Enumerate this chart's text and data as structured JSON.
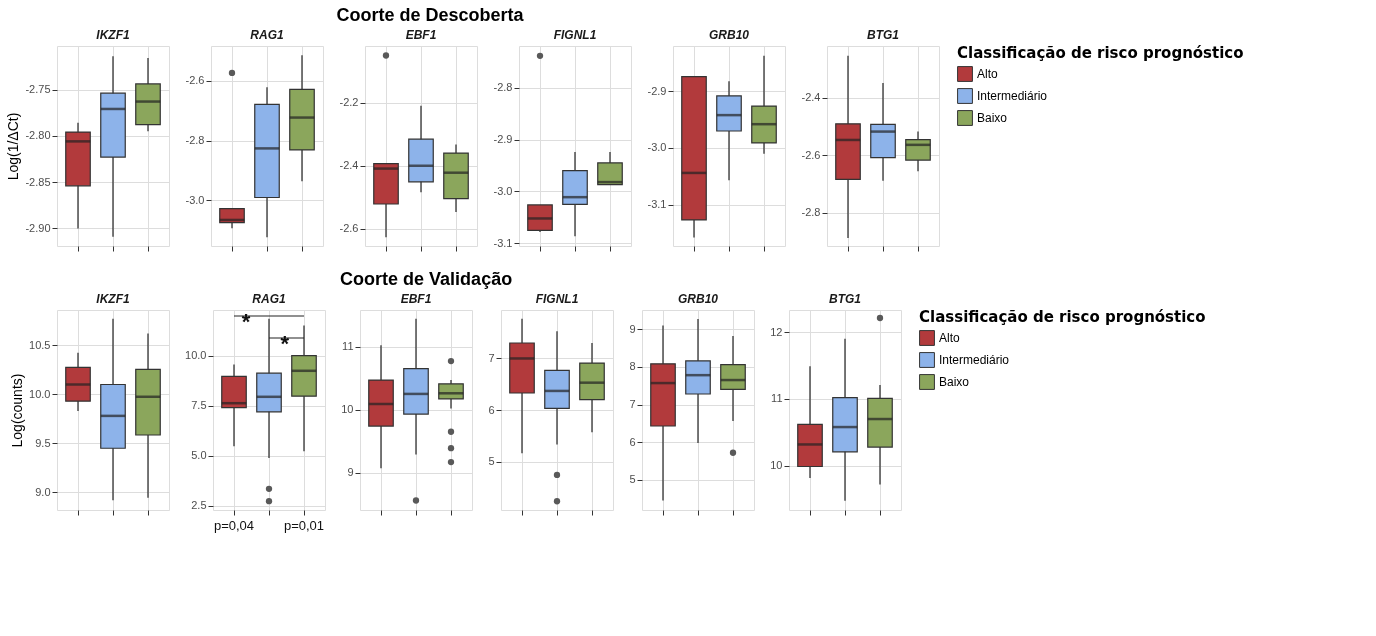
{
  "chart_data": [
    {
      "type": "box",
      "title": "IKZF1",
      "ylabel": "Log(1/ΔCt)",
      "annotations": [
        "Coorte de Descoberta"
      ],
      "categories": [
        null
      ],
      "ylim": [
        -2.919,
        -2.703
      ],
      "yticks": [
        {
          "value": -2.75,
          "label": "-2.75"
        },
        {
          "value": -2.8,
          "label": "-2.80"
        },
        {
          "value": -2.85,
          "label": "-2.85"
        },
        {
          "value": -2.9,
          "label": "-2.90"
        }
      ],
      "grid": true,
      "tick_labels": "y",
      "series": [
        {
          "color": "#b23a3c",
          "boxes": [
            {
              "low": -2.9,
              "q1": -2.854,
              "median": -2.806,
              "q3": -2.796,
              "high": -2.786
            }
          ]
        },
        {
          "color": "#8db3ea",
          "boxes": [
            {
              "low": -2.909,
              "q1": -2.823,
              "median": -2.771,
              "q3": -2.754,
              "high": -2.714
            }
          ]
        },
        {
          "color": "#8ba65c",
          "boxes": [
            {
              "low": -2.795,
              "q1": -2.788,
              "median": -2.763,
              "q3": -2.744,
              "high": -2.716
            }
          ]
        }
      ]
    },
    {
      "type": "box",
      "title": "RAG1",
      "categories": [
        null
      ],
      "ylim": [
        -3.152,
        -2.484
      ],
      "yticks": [
        {
          "value": -2.6,
          "label": "-2.6"
        },
        {
          "value": -2.8,
          "label": "-2.8"
        },
        {
          "value": -3.0,
          "label": "-3.0"
        }
      ],
      "grid": true,
      "tick_labels": "y",
      "series": [
        {
          "color": "#b23a3c",
          "boxes": [
            {
              "low": -3.093,
              "q1": -3.074,
              "median": -3.065,
              "q3": -3.027,
              "high": -3.027,
              "outliers": [
                -2.574
              ]
            }
          ]
        },
        {
          "color": "#8db3ea",
          "boxes": [
            {
              "low": -3.123,
              "q1": -2.99,
              "median": -2.826,
              "q3": -2.679,
              "high": -2.622
            }
          ]
        },
        {
          "color": "#8ba65c",
          "boxes": [
            {
              "low": -2.936,
              "q1": -2.831,
              "median": -2.723,
              "q3": -2.629,
              "high": -2.515
            }
          ]
        }
      ]
    },
    {
      "type": "box",
      "title": "EBF1",
      "categories": [
        null
      ],
      "ylim": [
        -2.654,
        -2.021
      ],
      "yticks": [
        {
          "value": -2.2,
          "label": "-2.2"
        },
        {
          "value": -2.4,
          "label": "-2.4"
        },
        {
          "value": -2.6,
          "label": "-2.6"
        }
      ],
      "grid": true,
      "tick_labels": "y",
      "series": [
        {
          "color": "#b23a3c",
          "boxes": [
            {
              "low": -2.626,
              "q1": -2.521,
              "median": -2.409,
              "q3": -2.393,
              "high": -2.393,
              "outliers": [
                -2.051
              ]
            }
          ]
        },
        {
          "color": "#8db3ea",
          "boxes": [
            {
              "low": -2.484,
              "q1": -2.451,
              "median": -2.4,
              "q3": -2.316,
              "high": -2.21
            }
          ]
        },
        {
          "color": "#8ba65c",
          "boxes": [
            {
              "low": -2.546,
              "q1": -2.504,
              "median": -2.422,
              "q3": -2.36,
              "high": -2.333
            }
          ]
        }
      ]
    },
    {
      "type": "box",
      "title": "FIGNL1",
      "categories": [
        null
      ],
      "ylim": [
        -3.105,
        -2.72
      ],
      "yticks": [
        {
          "value": -2.8,
          "label": "-2.8"
        },
        {
          "value": -2.9,
          "label": "-2.9"
        },
        {
          "value": -3.0,
          "label": "-3.0"
        },
        {
          "value": -3.1,
          "label": "-3.1"
        }
      ],
      "grid": true,
      "tick_labels": "y",
      "series": [
        {
          "color": "#b23a3c",
          "boxes": [
            {
              "low": -3.078,
              "q1": -3.075,
              "median": -3.052,
              "q3": -3.026,
              "high": -3.026,
              "outliers": [
                -2.739
              ]
            }
          ]
        },
        {
          "color": "#8db3ea",
          "boxes": [
            {
              "low": -3.086,
              "q1": -3.025,
              "median": -3.011,
              "q3": -2.96,
              "high": -2.924
            }
          ]
        },
        {
          "color": "#8ba65c",
          "boxes": [
            {
              "low": -2.987,
              "q1": -2.987,
              "median": -2.982,
              "q3": -2.945,
              "high": -2.924
            }
          ]
        }
      ]
    },
    {
      "type": "box",
      "title": "GRB10",
      "categories": [
        null
      ],
      "ylim": [
        -3.173,
        -2.82
      ],
      "yticks": [
        {
          "value": -2.9,
          "label": "-2.9"
        },
        {
          "value": -3.0,
          "label": "-3.0"
        },
        {
          "value": -3.1,
          "label": "-3.1"
        }
      ],
      "grid": true,
      "tick_labels": "y",
      "series": [
        {
          "color": "#b23a3c",
          "boxes": [
            {
              "low": -3.158,
              "q1": -3.127,
              "median": -3.044,
              "q3": -2.874,
              "high": -2.874
            }
          ]
        },
        {
          "color": "#8db3ea",
          "boxes": [
            {
              "low": -3.057,
              "q1": -2.97,
              "median": -2.942,
              "q3": -2.908,
              "high": -2.882
            }
          ]
        },
        {
          "color": "#8ba65c",
          "boxes": [
            {
              "low": -3.01,
              "q1": -2.991,
              "median": -2.958,
              "q3": -2.926,
              "high": -2.837
            }
          ]
        }
      ]
    },
    {
      "type": "box",
      "title": "BTG1",
      "categories": [
        null
      ],
      "ylim": [
        -2.915,
        -2.221
      ],
      "yticks": [
        {
          "value": -2.4,
          "label": "-2.4"
        },
        {
          "value": -2.6,
          "label": "-2.6"
        },
        {
          "value": -2.8,
          "label": "-2.8"
        }
      ],
      "grid": true,
      "tick_labels": "y",
      "legend": "right",
      "legend_title": "Classificação de risco prognóstico",
      "series": [
        {
          "name": "Alto",
          "color": "#b23a3c",
          "boxes": [
            {
              "low": -2.887,
              "q1": -2.684,
              "median": -2.547,
              "q3": -2.491,
              "high": -2.255
            }
          ]
        },
        {
          "name": "Intermediário",
          "color": "#8db3ea",
          "boxes": [
            {
              "low": -2.689,
              "q1": -2.608,
              "median": -2.518,
              "q3": -2.493,
              "high": -2.349
            }
          ]
        },
        {
          "name": "Baixo",
          "color": "#8ba65c",
          "boxes": [
            {
              "low": -2.656,
              "q1": -2.617,
              "median": -2.564,
              "q3": -2.546,
              "high": -2.518
            }
          ]
        }
      ]
    },
    {
      "type": "box",
      "title": "IKZF1",
      "ylabel": "Log(counts)",
      "annotations": [
        "Coorte de Validação"
      ],
      "categories": [
        null
      ],
      "ylim": [
        8.82,
        10.86
      ],
      "yticks": [
        {
          "value": 9.0,
          "label": "9.0"
        },
        {
          "value": 9.5,
          "label": "9.5"
        },
        {
          "value": 10.0,
          "label": "10.0"
        },
        {
          "value": 10.5,
          "label": "10.5"
        }
      ],
      "grid": true,
      "tick_labels": "y",
      "series": [
        {
          "color": "#b23a3c",
          "boxes": [
            {
              "low": 9.83,
              "q1": 9.93,
              "median": 10.1,
              "q3": 10.275,
              "high": 10.425
            }
          ]
        },
        {
          "color": "#8db3ea",
          "boxes": [
            {
              "low": 8.92,
              "q1": 9.45,
              "median": 9.78,
              "q3": 10.1,
              "high": 10.77
            }
          ]
        },
        {
          "color": "#8ba65c",
          "boxes": [
            {
              "low": 8.945,
              "q1": 9.585,
              "median": 9.975,
              "q3": 10.255,
              "high": 10.62
            }
          ]
        }
      ]
    },
    {
      "type": "box",
      "title": "RAG1",
      "annotations": [
        "*",
        "*",
        "p=0,04",
        "p=0,01"
      ],
      "categories": [
        null
      ],
      "ylim": [
        2.28,
        12.28
      ],
      "yticks": [
        {
          "value": 2.5,
          "label": "2.5"
        },
        {
          "value": 5.0,
          "label": "5.0"
        },
        {
          "value": 7.5,
          "label": "7.5"
        },
        {
          "value": 10.0,
          "label": "10.0"
        }
      ],
      "grid": true,
      "tick_labels": "y",
      "series": [
        {
          "color": "#b23a3c",
          "boxes": [
            {
              "low": 5.47,
              "q1": 7.4,
              "median": 7.62,
              "q3": 8.96,
              "high": 9.56
            }
          ]
        },
        {
          "color": "#8db3ea",
          "boxes": [
            {
              "low": 4.88,
              "q1": 7.19,
              "median": 7.94,
              "q3": 9.12,
              "high": 11.84,
              "outliers": [
                3.34,
                2.72
              ]
            }
          ]
        },
        {
          "color": "#8ba65c",
          "boxes": [
            {
              "low": 5.22,
              "q1": 7.97,
              "median": 9.24,
              "q3": 10.0,
              "high": 11.51
            }
          ]
        }
      ]
    },
    {
      "type": "box",
      "title": "EBF1",
      "categories": [
        null
      ],
      "ylim": [
        8.41,
        11.58
      ],
      "yticks": [
        9,
        10,
        11
      ],
      "grid": true,
      "tick_labels": "y",
      "series": [
        {
          "color": "#b23a3c",
          "boxes": [
            {
              "low": 9.07,
              "q1": 9.74,
              "median": 10.09,
              "q3": 10.47,
              "high": 11.02
            }
          ]
        },
        {
          "color": "#8db3ea",
          "boxes": [
            {
              "low": 9.29,
              "q1": 9.93,
              "median": 10.25,
              "q3": 10.65,
              "high": 11.44,
              "outliers": [
                8.56
              ]
            }
          ]
        },
        {
          "color": "#8ba65c",
          "boxes": [
            {
              "low": 10.02,
              "q1": 10.17,
              "median": 10.26,
              "q3": 10.41,
              "high": 10.47,
              "outliers": [
                10.77,
                9.65,
                9.39,
                9.17
              ]
            }
          ]
        }
      ]
    },
    {
      "type": "box",
      "title": "FIGNL1",
      "categories": [
        null
      ],
      "ylim": [
        4.06,
        7.94
      ],
      "yticks": [
        5,
        6,
        7
      ],
      "grid": true,
      "tick_labels": "y",
      "series": [
        {
          "color": "#b23a3c",
          "boxes": [
            {
              "low": 5.16,
              "q1": 6.33,
              "median": 7.0,
              "q3": 7.3,
              "high": 7.77
            }
          ]
        },
        {
          "color": "#8db3ea",
          "boxes": [
            {
              "low": 5.33,
              "q1": 6.03,
              "median": 6.37,
              "q3": 6.77,
              "high": 7.53,
              "outliers": [
                4.74,
                4.23
              ]
            }
          ]
        },
        {
          "color": "#8ba65c",
          "boxes": [
            {
              "low": 5.57,
              "q1": 6.2,
              "median": 6.53,
              "q3": 6.91,
              "high": 7.3
            }
          ]
        }
      ]
    },
    {
      "type": "box",
      "title": "GRB10",
      "categories": [
        null
      ],
      "ylim": [
        4.2,
        9.51
      ],
      "yticks": [
        5,
        6,
        7,
        8,
        9
      ],
      "grid": true,
      "tick_labels": "y",
      "series": [
        {
          "color": "#b23a3c",
          "boxes": [
            {
              "low": 4.45,
              "q1": 6.43,
              "median": 7.57,
              "q3": 8.08,
              "high": 9.1
            }
          ]
        },
        {
          "color": "#8db3ea",
          "boxes": [
            {
              "low": 5.98,
              "q1": 7.28,
              "median": 7.78,
              "q3": 8.16,
              "high": 9.27
            }
          ]
        },
        {
          "color": "#8ba65c",
          "boxes": [
            {
              "low": 6.56,
              "q1": 7.4,
              "median": 7.65,
              "q3": 8.06,
              "high": 8.82,
              "outliers": [
                5.72
              ]
            }
          ]
        }
      ]
    },
    {
      "type": "box",
      "title": "BTG1",
      "categories": [
        null
      ],
      "ylim": [
        9.34,
        12.33
      ],
      "yticks": [
        10,
        11,
        12
      ],
      "grid": true,
      "tick_labels": "y",
      "legend": "right",
      "legend_title": "Classificação de risco prognóstico",
      "series": [
        {
          "name": "Alto",
          "color": "#b23a3c",
          "boxes": [
            {
              "low": 9.82,
              "q1": 9.99,
              "median": 10.32,
              "q3": 10.62,
              "high": 11.49
            }
          ]
        },
        {
          "name": "Intermediário",
          "color": "#8db3ea",
          "boxes": [
            {
              "low": 9.48,
              "q1": 10.21,
              "median": 10.58,
              "q3": 11.02,
              "high": 11.9
            }
          ]
        },
        {
          "name": "Baixo",
          "color": "#8ba65c",
          "boxes": [
            {
              "low": 9.72,
              "q1": 10.28,
              "median": 10.7,
              "q3": 11.01,
              "high": 11.21,
              "outliers": [
                12.21
              ]
            }
          ]
        }
      ]
    }
  ]
}
